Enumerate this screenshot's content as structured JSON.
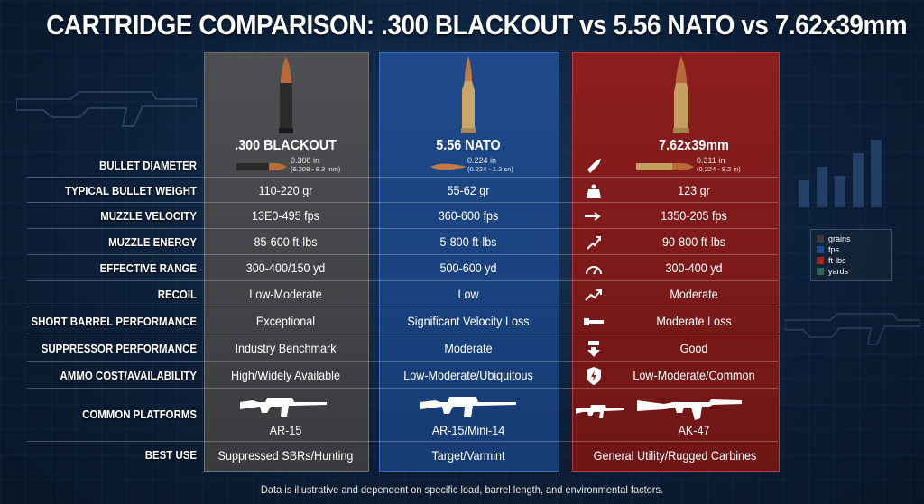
{
  "title": "CARTRIDGE COMPARISON: .300 BLACKOUT vs 5.56 NATO vs 7.62x39mm",
  "columns": [
    {
      "name": ".300 BLACKOUT",
      "color": "#4a4b4e",
      "diameter": "0.308 in",
      "diameter_sub": "(6.208 - 8.3 mm)"
    },
    {
      "name": "5.56 NATO",
      "color": "#1f4a8c",
      "diameter": "0.224 in",
      "diameter_sub": "(0.224 - 1.2 sn)"
    },
    {
      "name": "7.62x39mm",
      "color": "#8c1e1e",
      "diameter": "0.311 in",
      "diameter_sub": "(0.224 - 8.2 in)"
    }
  ],
  "labels": {
    "diameter": "BULLET DIAMETER",
    "weight": "TYPICAL BULLET WEIGHT",
    "velocity": "MUZZLE VELOCITY",
    "energy": "MUZZLE ENERGY",
    "range": "EFFECTIVE RANGE",
    "recoil": "RECOIL",
    "short_barrel": "SHORT BARREL PERFORMANCE",
    "suppressor": "SUPPRESSOR PERFORMANCE",
    "ammo": "AMMO COST/AVAILABILITY",
    "platforms": "COMMON PLATFORMS",
    "best_use": "BEST USE"
  },
  "rows": {
    "weight": [
      "110-220 gr",
      "55-62 gr",
      "123 gr"
    ],
    "velocity": [
      "13E0-495 fps",
      "360-600 fps",
      "1350-205 fps"
    ],
    "energy": [
      "85-600 ft-lbs",
      "5-800 ft-lbs",
      "90-800 ft-lbs"
    ],
    "range": [
      "300-400/150 yd",
      "500-600 yd",
      "300-400 yd"
    ],
    "recoil": [
      "Low-Moderate",
      "Low",
      "Moderate"
    ],
    "short_barrel": [
      "Exceptional",
      "Significant Velocity Loss",
      "Moderate Loss"
    ],
    "suppressor": [
      "Industry Benchmark",
      "Moderate",
      "Good"
    ],
    "ammo": [
      "High/Widely Available",
      "Low-Moderate/Ubiquitous",
      "Low-Moderate/Common"
    ],
    "platforms": [
      "AR-15",
      "AR-15/Mini-14",
      "AK-47"
    ],
    "best_use": [
      "Suppressed SBRs/Hunting",
      "Target/Varmint",
      "General Utility/Rugged Carbines"
    ]
  },
  "legend": [
    {
      "label": "grains",
      "color": "#3a3b3e"
    },
    {
      "label": "fps",
      "color": "#1f4a8c"
    },
    {
      "label": "ft-lbs",
      "color": "#a02424"
    },
    {
      "label": "yards",
      "color": "#2a6a55"
    }
  ],
  "icons": [
    "bullet-icon",
    "weight-icon",
    "arrow-icon",
    "impact-icon",
    "gauge-icon",
    "trend-icon",
    "barrel-icon",
    "down-arrow-icon",
    "shield-bolt-icon"
  ],
  "footnote": "Data is illustrative and dependent on specific load, barrel length, and environmental factors."
}
